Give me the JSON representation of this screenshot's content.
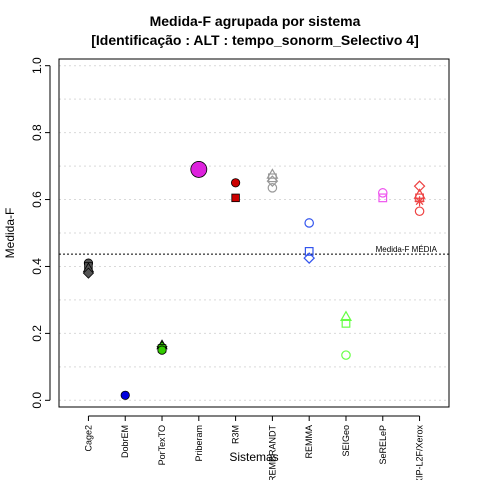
{
  "chart_data": {
    "type": "scatter",
    "title_line1": "Medida-F agrupada por sistema",
    "title_line2": "[Identificação : ALT : tempo_sonorm_Selectivo 4]",
    "xlabel": "Sistemas",
    "ylabel": "Medida-F",
    "ylim": [
      -0.02,
      1.02
    ],
    "yticks": [
      "0.0",
      "0.2",
      "0.4",
      "0.6",
      "0.8",
      "1.0"
    ],
    "ytick_values": [
      0,
      0.2,
      0.4,
      0.6,
      0.8,
      1.0
    ],
    "categories": [
      "Cage2",
      "DobrEM",
      "PorTexTO",
      "Priberam",
      "R3M",
      "REMBRANDT",
      "REMMA",
      "SEIGeo",
      "SeRELeP",
      "XIP-L2F/Xerox"
    ],
    "grid": "horizontal dotted",
    "reference_line": {
      "label": "Medida-F MÉDIA",
      "value": 0.437
    },
    "points": [
      {
        "category": "Cage2",
        "values": [
          0.41,
          0.4,
          0.395,
          0.38
        ],
        "shapes": [
          "circle-filled",
          "square-filled",
          "triangle-filled",
          "diamond-filled"
        ],
        "color": "#555555"
      },
      {
        "category": "DobrEM",
        "values": [
          0.015
        ],
        "shapes": [
          "circle-filled"
        ],
        "color": "#0000dd"
      },
      {
        "category": "PorTexTO",
        "values": [
          0.165,
          0.16,
          0.155,
          0.15
        ],
        "shapes": [
          "triangle-filled",
          "diamond-filled",
          "square-filled",
          "circle-filled"
        ],
        "color": "#33cc00"
      },
      {
        "category": "Priberam",
        "values": [
          0.69
        ],
        "shapes": [
          "circle-filled-large"
        ],
        "color": "#dd22dd"
      },
      {
        "category": "R3M",
        "values": [
          0.65,
          0.605
        ],
        "shapes": [
          "circle-filled",
          "square-filled"
        ],
        "color": "#cc0000"
      },
      {
        "category": "REMBRANDT",
        "values": [
          0.675,
          0.665,
          0.655,
          0.635
        ],
        "shapes": [
          "triangle-open",
          "square-open",
          "diamond-open",
          "circle-open"
        ],
        "color": "#999999"
      },
      {
        "category": "REMMA",
        "values": [
          0.53,
          0.445,
          0.425
        ],
        "shapes": [
          "circle-open",
          "square-open",
          "diamond-open"
        ],
        "color": "#3355ee"
      },
      {
        "category": "SEIGeo",
        "values": [
          0.25,
          0.23,
          0.135
        ],
        "shapes": [
          "triangle-open",
          "square-open",
          "circle-open"
        ],
        "color": "#66ff44"
      },
      {
        "category": "SeRELeP",
        "values": [
          0.62,
          0.605
        ],
        "shapes": [
          "circle-open",
          "square-open"
        ],
        "color": "#ee55ee"
      },
      {
        "category": "XIP-L2F/Xerox",
        "values": [
          0.64,
          0.615,
          0.605,
          0.595,
          0.565
        ],
        "shapes": [
          "diamond-open",
          "triangle-open",
          "square-open",
          "asterisk",
          "circle-open"
        ],
        "color": "#ee4444"
      }
    ]
  }
}
